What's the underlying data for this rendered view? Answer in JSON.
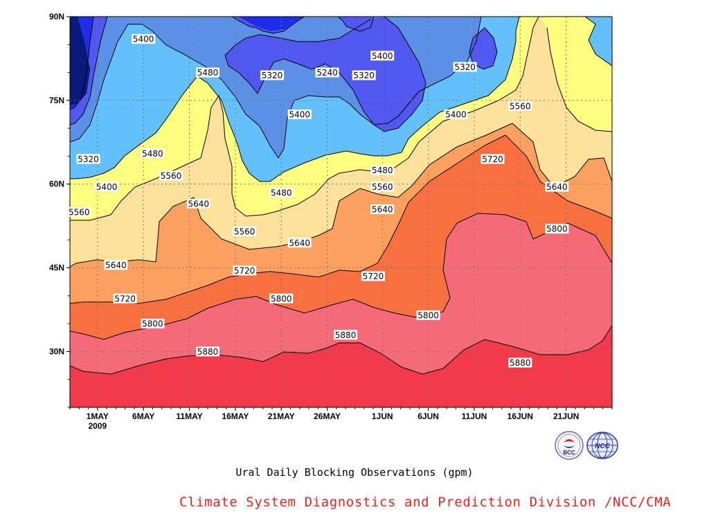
{
  "chart_data": {
    "type": "heatmap",
    "title": "Ural Daily Blocking Observations (gpm)",
    "x_ticks": [
      "1MAY",
      "6MAY",
      "11MAY",
      "16MAY",
      "21MAY",
      "26MAY",
      "1JUN",
      "6JUN",
      "11JUN",
      "16JUN",
      "21JUN"
    ],
    "x_year": "2009",
    "y_ticks": [
      "30N",
      "45N",
      "60N",
      "75N",
      "90N"
    ],
    "xlim": [
      "2009-04-28",
      "2009-06-26"
    ],
    "ylim": [
      20,
      90
    ],
    "contour_levels": [
      5240,
      5320,
      5400,
      5480,
      5560,
      5640,
      5720,
      5800,
      5880
    ],
    "contour_labels": [
      {
        "text": "5400",
        "date": "2009-05-06",
        "lat": 86
      },
      {
        "text": "5480",
        "date": "2009-05-13",
        "lat": 80
      },
      {
        "text": "5320",
        "date": "2009-05-20",
        "lat": 79.5
      },
      {
        "text": "5240",
        "date": "2009-05-26",
        "lat": 80
      },
      {
        "text": "5320",
        "date": "2009-05-30",
        "lat": 79.5
      },
      {
        "text": "5400",
        "date": "2009-06-01",
        "lat": 83
      },
      {
        "text": "5320",
        "date": "2009-06-10",
        "lat": 81
      },
      {
        "text": "5400",
        "date": "2009-05-23",
        "lat": 72.5
      },
      {
        "text": "5400",
        "date": "2009-06-09",
        "lat": 72.5
      },
      {
        "text": "5560",
        "date": "2009-06-16",
        "lat": 74
      },
      {
        "text": "5320",
        "date": "2009-04-30",
        "lat": 64.5
      },
      {
        "text": "5480",
        "date": "2009-05-07",
        "lat": 65.5
      },
      {
        "text": "5400",
        "date": "2009-05-02",
        "lat": 59.5
      },
      {
        "text": "5560",
        "date": "2009-05-09",
        "lat": 61.5
      },
      {
        "text": "5560",
        "date": "2009-04-29",
        "lat": 55
      },
      {
        "text": "5480",
        "date": "2009-05-21",
        "lat": 58.5
      },
      {
        "text": "5640",
        "date": "2009-05-12",
        "lat": 56.5
      },
      {
        "text": "5560",
        "date": "2009-05-17",
        "lat": 51.5
      },
      {
        "text": "5480",
        "date": "2009-06-01",
        "lat": 62.5
      },
      {
        "text": "5560",
        "date": "2009-06-01",
        "lat": 59.5
      },
      {
        "text": "5640",
        "date": "2009-06-01",
        "lat": 55.5
      },
      {
        "text": "5720",
        "date": "2009-06-13",
        "lat": 64.5
      },
      {
        "text": "5640",
        "date": "2009-06-20",
        "lat": 59.5
      },
      {
        "text": "5640",
        "date": "2009-05-23",
        "lat": 49.5
      },
      {
        "text": "5800",
        "date": "2009-06-20",
        "lat": 52
      },
      {
        "text": "5640",
        "date": "2009-05-03",
        "lat": 45.5
      },
      {
        "text": "5720",
        "date": "2009-05-17",
        "lat": 44.5
      },
      {
        "text": "5720",
        "date": "2009-05-31",
        "lat": 43.5
      },
      {
        "text": "5720",
        "date": "2009-05-04",
        "lat": 39.5
      },
      {
        "text": "5800",
        "date": "2009-05-21",
        "lat": 39.5
      },
      {
        "text": "5800",
        "date": "2009-06-06",
        "lat": 36.5
      },
      {
        "text": "5800",
        "date": "2009-05-07",
        "lat": 35
      },
      {
        "text": "5880",
        "date": "2009-05-28",
        "lat": 33
      },
      {
        "text": "5880",
        "date": "2009-05-13",
        "lat": 30
      },
      {
        "text": "5880",
        "date": "2009-06-16",
        "lat": 28
      }
    ],
    "grid": true,
    "colors": {
      "below_5240": "#0a1a7a",
      "5240_5320": "#1c2ee8",
      "5320_5400": "#5058f0",
      "5400_5480": "#5a90e6",
      "5480_5560": "#64c0fb",
      "5560_5640": "#fefe80",
      "5640_5720": "#fde09a",
      "5720_5800": "#fca060",
      "5800_5880": "#f97040",
      "5880_5960": "#f56a78",
      "above_5960": "#f23a4a"
    }
  },
  "caption": "Ural Daily Blocking Observations (gpm)",
  "credit": "Climate System Diagnostics and Prediction Division /NCC/CMA",
  "logos": {
    "left": {
      "icon": "bcc-logo-icon",
      "text": "BCC"
    },
    "right": {
      "icon": "ncc-logo-icon",
      "text": "NCC"
    }
  }
}
